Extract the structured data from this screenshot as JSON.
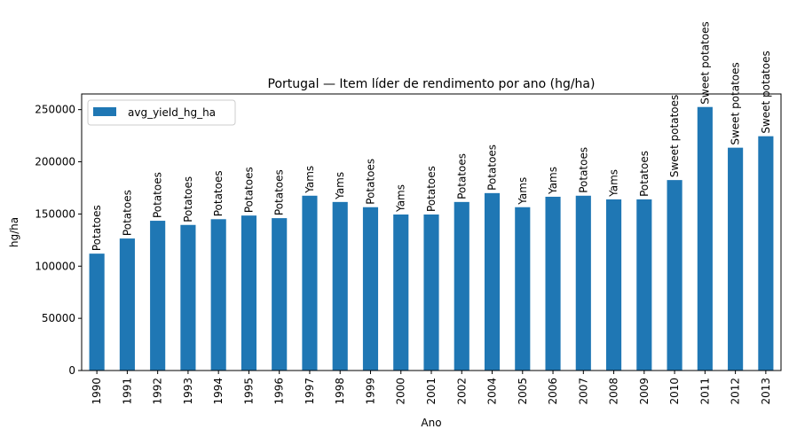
{
  "chart_data": {
    "type": "bar",
    "title": "Portugal — Item líder de rendimento por ano (hg/ha)",
    "xlabel": "Ano",
    "ylabel": "hg/ha",
    "legend": {
      "label": "avg_yield_hg_ha",
      "placement": "top-left"
    },
    "bar_color": "#1f77b4",
    "ylim": [
      0,
      265000
    ],
    "yticks": [
      0,
      50000,
      100000,
      150000,
      200000,
      250000
    ],
    "grid": false,
    "categories": [
      "1990",
      "1991",
      "1992",
      "1993",
      "1994",
      "1995",
      "1996",
      "1997",
      "1998",
      "1999",
      "2000",
      "2001",
      "2002",
      "2004",
      "2005",
      "2006",
      "2007",
      "2008",
      "2009",
      "2010",
      "2011",
      "2012",
      "2013"
    ],
    "values": [
      112000,
      126500,
      143500,
      139500,
      145000,
      148500,
      146000,
      167500,
      161500,
      156500,
      149500,
      149500,
      161500,
      170000,
      156500,
      166500,
      167500,
      164000,
      164000,
      182500,
      252500,
      213500,
      224500
    ],
    "bar_labels": [
      "Potatoes",
      "Potatoes",
      "Potatoes",
      "Potatoes",
      "Potatoes",
      "Potatoes",
      "Potatoes",
      "Yams",
      "Yams",
      "Potatoes",
      "Yams",
      "Potatoes",
      "Potatoes",
      "Potatoes",
      "Yams",
      "Yams",
      "Potatoes",
      "Yams",
      "Potatoes",
      "Sweet potatoes",
      "Sweet potatoes",
      "Sweet potatoes",
      "Sweet potatoes"
    ]
  }
}
